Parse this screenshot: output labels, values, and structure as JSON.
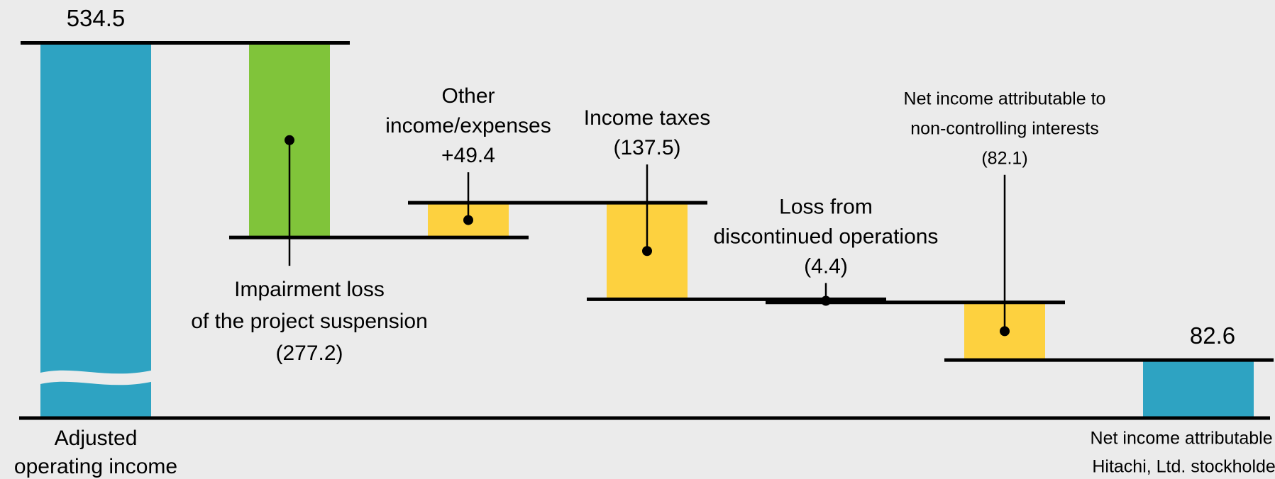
{
  "chart_data": {
    "type": "waterfall",
    "categories": [
      [
        "Adjusted",
        "operating income"
      ],
      [
        "Impairment loss",
        "of the project suspension"
      ],
      [
        "Other",
        "income/expenses"
      ],
      [
        "Income taxes"
      ],
      [
        "Loss from",
        "discontinued operations"
      ],
      [
        "Net income attributable to",
        "non-controlling interests"
      ],
      [
        "Net income attributable to",
        "Hitachi, Ltd. stockholders"
      ]
    ],
    "values": [
      534.5,
      -277.2,
      49.4,
      -137.5,
      -4.4,
      -82.1,
      82.6
    ],
    "value_labels": [
      "534.5",
      "(277.2)",
      "+49.4",
      "(137.5)",
      "(4.4)",
      "(82.1)",
      "82.6"
    ],
    "is_total": [
      true,
      false,
      false,
      false,
      false,
      false,
      true
    ],
    "colors": [
      "#2ea3c2",
      "#80c43a",
      "#fdd13f",
      "#fdd13f",
      "#fdd13f",
      "#fdd13f",
      "#2ea3c2"
    ],
    "ylim": [
      0,
      540
    ]
  }
}
